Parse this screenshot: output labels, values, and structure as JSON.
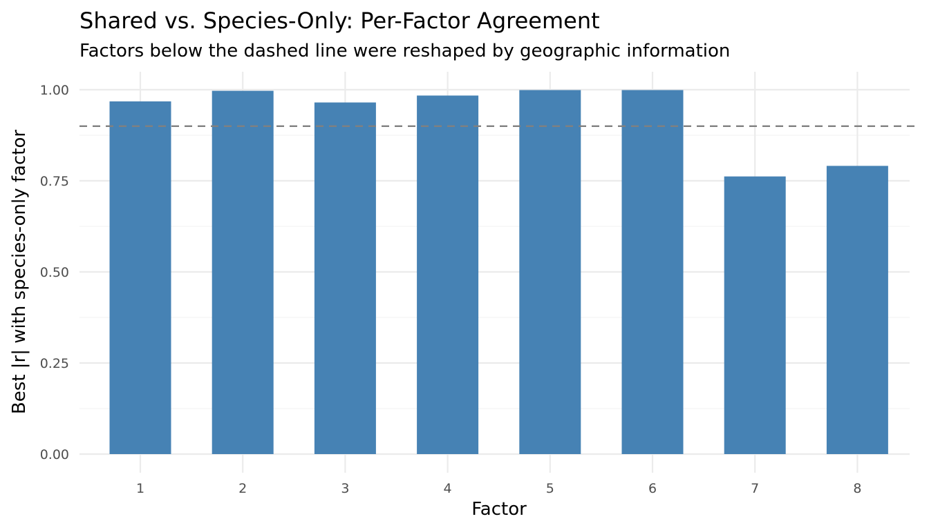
{
  "chart_data": {
    "type": "bar",
    "title": "Shared vs. Species-Only: Per-Factor Agreement",
    "subtitle": "Factors below the dashed line were reshaped by geographic information",
    "xlabel": "Factor",
    "ylabel": "Best |r| with species-only factor",
    "categories": [
      "1",
      "2",
      "3",
      "4",
      "5",
      "6",
      "7",
      "8"
    ],
    "values": [
      0.968,
      0.997,
      0.965,
      0.984,
      0.999,
      0.999,
      0.762,
      0.791
    ],
    "ylim": [
      0,
      1.05
    ],
    "yticks": [
      0.0,
      0.25,
      0.5,
      0.75,
      1.0
    ],
    "ytick_labels": [
      "0.00",
      "0.25",
      "0.50",
      "0.75",
      "1.00"
    ],
    "reference_line": {
      "y": 0.9,
      "style": "dashed",
      "color": "#808080"
    },
    "bar_color": "#4682B4",
    "grid": true,
    "legend": "none"
  }
}
